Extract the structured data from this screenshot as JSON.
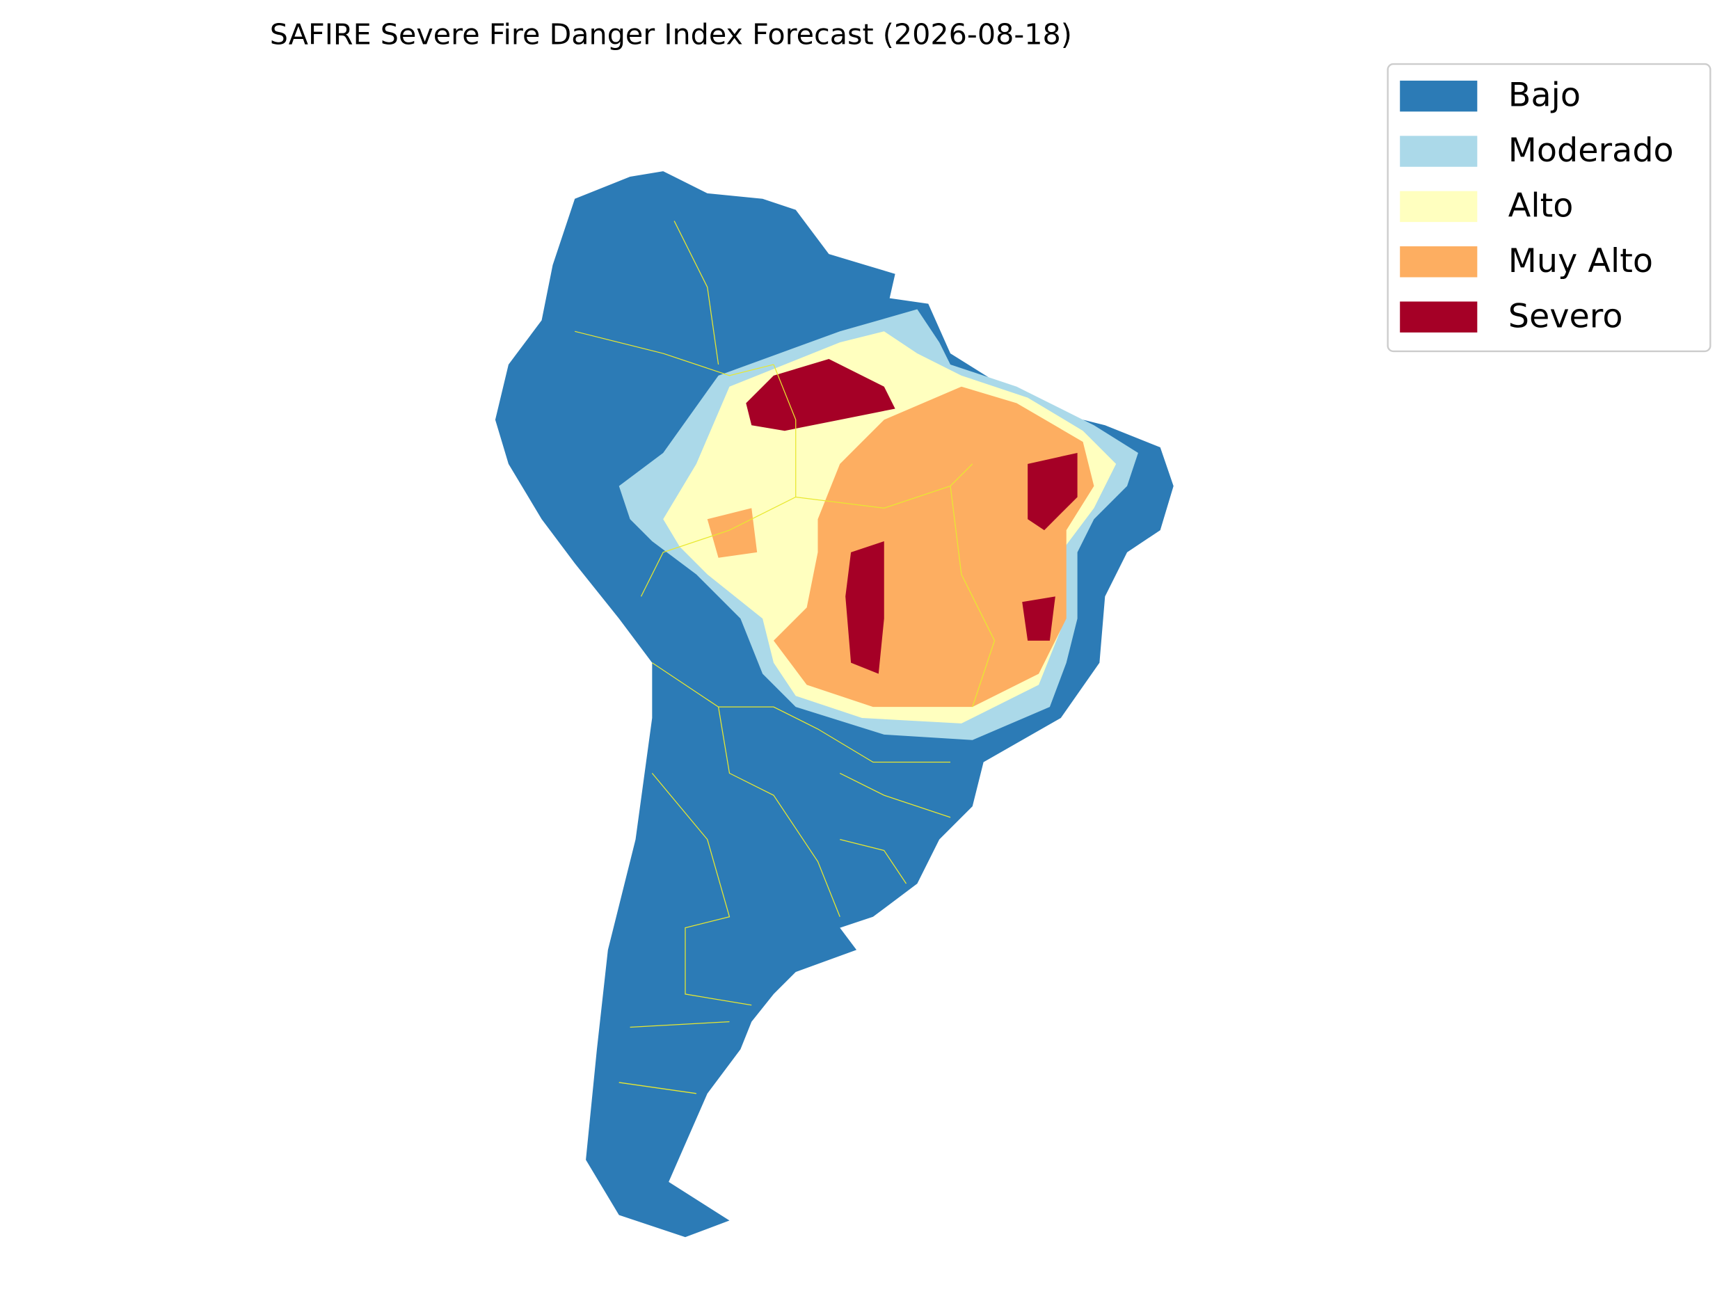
{
  "title": "SAFIRE Severe Fire Danger Index Forecast (2026-08-18)",
  "legend": {
    "items": [
      {
        "label": "Bajo",
        "color": "#2c7bb6"
      },
      {
        "label": "Moderado",
        "color": "#abd9e9"
      },
      {
        "label": "Alto",
        "color": "#ffffbf"
      },
      {
        "label": "Muy Alto",
        "color": "#fdae61"
      },
      {
        "label": "Severo",
        "color": "#a50026"
      }
    ]
  }
}
